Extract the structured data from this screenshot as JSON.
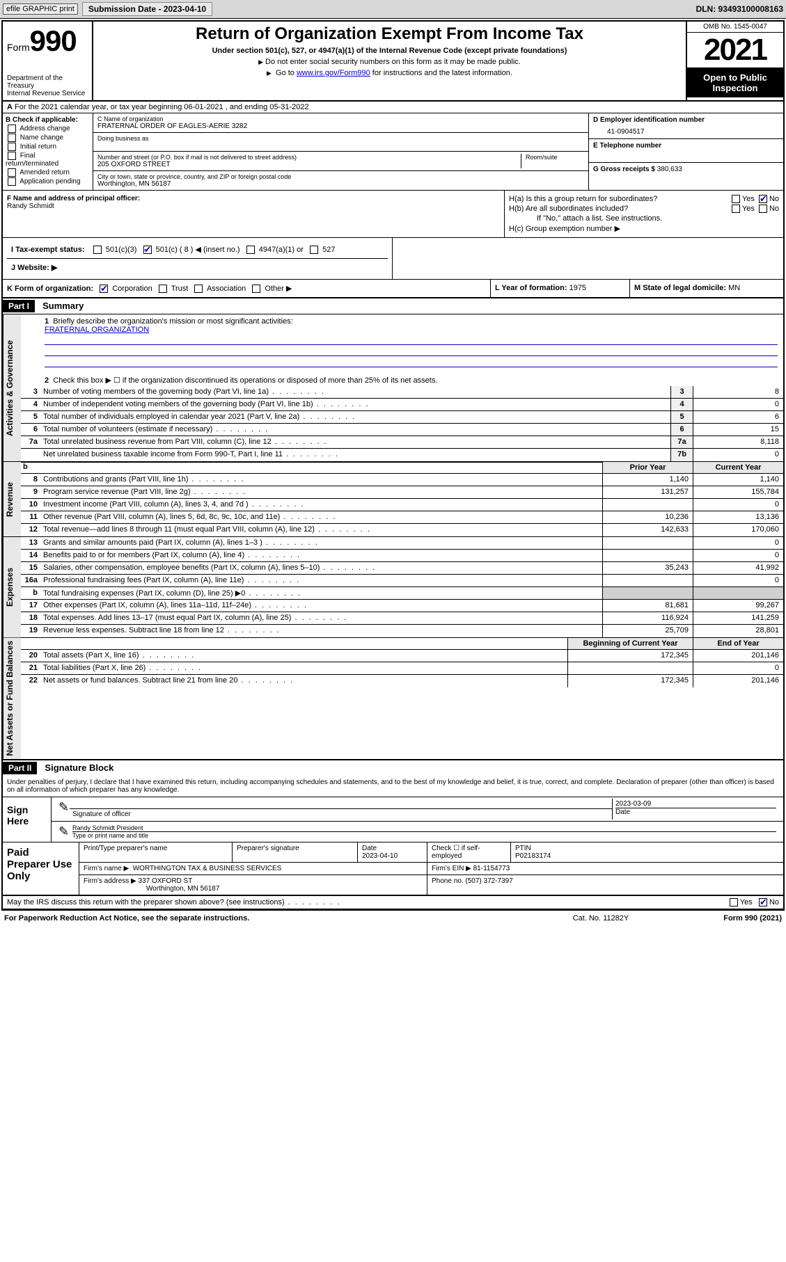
{
  "topbar": {
    "efile_label": "efile GRAPHIC print",
    "submission_label": "Submission Date - 2023-04-10",
    "dln_label": "DLN: 93493100008163"
  },
  "header": {
    "form_prefix": "Form",
    "form_number": "990",
    "dept": "Department of the Treasury",
    "irs": "Internal Revenue Service",
    "title": "Return of Organization Exempt From Income Tax",
    "subtitle": "Under section 501(c), 527, or 4947(a)(1) of the Internal Revenue Code (except private foundations)",
    "note1": "Do not enter social security numbers on this form as it may be made public.",
    "note2_prefix": "Go to ",
    "note2_link": "www.irs.gov/Form990",
    "note2_suffix": " for instructions and the latest information.",
    "omb": "OMB No. 1545-0047",
    "tax_year": "2021",
    "open_public": "Open to Public Inspection"
  },
  "row_a": {
    "text": "For the 2021 calendar year, or tax year beginning 06-01-2021   , and ending 05-31-2022",
    "label_a": "A"
  },
  "entity": {
    "b_label": "B Check if applicable:",
    "b_opts": [
      "Address change",
      "Name change",
      "Initial return",
      "Final return/terminated",
      "Amended return",
      "Application pending"
    ],
    "c_label": "C Name of organization",
    "c_name": "FRATERNAL ORDER OF EAGLES-AERIE 3282",
    "dba_label": "Doing business as",
    "addr_label": "Number and street (or P.O. box if mail is not delivered to street address)",
    "room_label": "Room/suite",
    "address": "205 OXFORD STREET",
    "city_label": "City or town, state or province, country, and ZIP or foreign postal code",
    "city": "Worthington, MN  56187",
    "d_label": "D Employer identification number",
    "d_val": "41-0904517",
    "e_label": "E Telephone number",
    "g_label": "G Gross receipts $",
    "g_val": "380,633"
  },
  "fg": {
    "f_label": "F Name and address of principal officer:",
    "f_name": "Randy Schmidt",
    "ha_label": "H(a)  Is this a group return for subordinates?",
    "ha_yes": "Yes",
    "ha_no": "No",
    "hb_label": "H(b)  Are all subordinates included?",
    "hb_note": "If \"No,\" attach a list. See instructions.",
    "hc_label": "H(c)  Group exemption number ▶"
  },
  "status": {
    "i_label": "I   Tax-exempt status:",
    "opt_501c3": "501(c)(3)",
    "opt_501c": "501(c) ( 8 ) ◀ (insert no.)",
    "opt_4947": "4947(a)(1) or",
    "opt_527": "527",
    "j_label": "J   Website: ▶"
  },
  "k_row": {
    "k_label": "K Form of organization:",
    "opts": [
      "Corporation",
      "Trust",
      "Association",
      "Other ▶"
    ],
    "l_label": "L Year of formation:",
    "l_val": "1975",
    "m_label": "M State of legal domicile:",
    "m_val": "MN"
  },
  "part1": {
    "hdr": "Part I",
    "title": "Summary",
    "brief_label": "Briefly describe the organization's mission or most significant activities:",
    "brief_val": "FRATERNAL ORGANIZATION",
    "check2": "Check this box ▶ ☐  if the organization discontinued its operations or disposed of more than 25% of its net assets."
  },
  "side_labels": {
    "gov": "Activities & Governance",
    "rev": "Revenue",
    "exp": "Expenses",
    "net": "Net Assets or Fund Balances"
  },
  "col_hdrs": {
    "prior": "Prior Year",
    "current": "Current Year",
    "begin": "Beginning of Current Year",
    "end": "End of Year"
  },
  "gov_lines": [
    {
      "n": "3",
      "d": "Number of voting members of the governing body (Part VI, line 1a)",
      "c": "3",
      "v": "8"
    },
    {
      "n": "4",
      "d": "Number of independent voting members of the governing body (Part VI, line 1b)",
      "c": "4",
      "v": "0"
    },
    {
      "n": "5",
      "d": "Total number of individuals employed in calendar year 2021 (Part V, line 2a)",
      "c": "5",
      "v": "6"
    },
    {
      "n": "6",
      "d": "Total number of volunteers (estimate if necessary)",
      "c": "6",
      "v": "15"
    },
    {
      "n": "7a",
      "d": "Total unrelated business revenue from Part VIII, column (C), line 12",
      "c": "7a",
      "v": "8,118"
    },
    {
      "n": "",
      "d": "Net unrelated business taxable income from Form 990-T, Part I, line 11",
      "c": "7b",
      "v": "0"
    }
  ],
  "rev_lines": [
    {
      "n": "8",
      "d": "Contributions and grants (Part VIII, line 1h)",
      "py": "1,140",
      "cy": "1,140"
    },
    {
      "n": "9",
      "d": "Program service revenue (Part VIII, line 2g)",
      "py": "131,257",
      "cy": "155,784"
    },
    {
      "n": "10",
      "d": "Investment income (Part VIII, column (A), lines 3, 4, and 7d )",
      "py": "",
      "cy": "0"
    },
    {
      "n": "11",
      "d": "Other revenue (Part VIII, column (A), lines 5, 6d, 8c, 9c, 10c, and 11e)",
      "py": "10,236",
      "cy": "13,136"
    },
    {
      "n": "12",
      "d": "Total revenue—add lines 8 through 11 (must equal Part VIII, column (A), line 12)",
      "py": "142,633",
      "cy": "170,060"
    }
  ],
  "exp_lines": [
    {
      "n": "13",
      "d": "Grants and similar amounts paid (Part IX, column (A), lines 1–3 )",
      "py": "",
      "cy": "0"
    },
    {
      "n": "14",
      "d": "Benefits paid to or for members (Part IX, column (A), line 4)",
      "py": "",
      "cy": "0"
    },
    {
      "n": "15",
      "d": "Salaries, other compensation, employee benefits (Part IX, column (A), lines 5–10)",
      "py": "35,243",
      "cy": "41,992"
    },
    {
      "n": "16a",
      "d": "Professional fundraising fees (Part IX, column (A), line 11e)",
      "py": "",
      "cy": "0"
    },
    {
      "n": "b",
      "d": "Total fundraising expenses (Part IX, column (D), line 25) ▶0",
      "py": "",
      "cy": "",
      "shade": true
    },
    {
      "n": "17",
      "d": "Other expenses (Part IX, column (A), lines 11a–11d, 11f–24e)",
      "py": "81,681",
      "cy": "99,267"
    },
    {
      "n": "18",
      "d": "Total expenses. Add lines 13–17 (must equal Part IX, column (A), line 25)",
      "py": "116,924",
      "cy": "141,259"
    },
    {
      "n": "19",
      "d": "Revenue less expenses. Subtract line 18 from line 12",
      "py": "25,709",
      "cy": "28,801"
    }
  ],
  "net_lines": [
    {
      "n": "20",
      "d": "Total assets (Part X, line 16)",
      "py": "172,345",
      "cy": "201,146"
    },
    {
      "n": "21",
      "d": "Total liabilities (Part X, line 26)",
      "py": "",
      "cy": "0"
    },
    {
      "n": "22",
      "d": "Net assets or fund balances. Subtract line 21 from line 20",
      "py": "172,345",
      "cy": "201,146"
    }
  ],
  "part2": {
    "hdr": "Part II",
    "title": "Signature Block",
    "penalty": "Under penalties of perjury, I declare that I have examined this return, including accompanying schedules and statements, and to the best of my knowledge and belief, it is true, correct, and complete. Declaration of preparer (other than officer) is based on all information of which preparer has any knowledge."
  },
  "sign": {
    "left": "Sign Here",
    "sig_label": "Signature of officer",
    "date_label": "Date",
    "date_val": "2023-03-09",
    "name": "Randy Schmidt  President",
    "name_label": "Type or print name and title"
  },
  "prep": {
    "left": "Paid Preparer Use Only",
    "col1": "Print/Type preparer's name",
    "col2": "Preparer's signature",
    "col3_label": "Date",
    "col3_val": "2023-04-10",
    "col4_label": "Check ☐ if self-employed",
    "col5_label": "PTIN",
    "col5_val": "P02183174",
    "firm_name_label": "Firm's name   ▶",
    "firm_name": "WORTHINGTON TAX & BUSINESS SERVICES",
    "firm_ein_label": "Firm's EIN ▶",
    "firm_ein": "81-1154773",
    "firm_addr_label": "Firm's address ▶",
    "firm_addr1": "337 OXFORD ST",
    "firm_addr2": "Worthington, MN  56187",
    "phone_label": "Phone no.",
    "phone": "(507) 372-7397"
  },
  "footer": {
    "discuss": "May the IRS discuss this return with the preparer shown above? (see instructions)",
    "yes": "Yes",
    "no": "No",
    "pra": "For Paperwork Reduction Act Notice, see the separate instructions.",
    "cat": "Cat. No. 11282Y",
    "form": "Form 990 (2021)"
  }
}
